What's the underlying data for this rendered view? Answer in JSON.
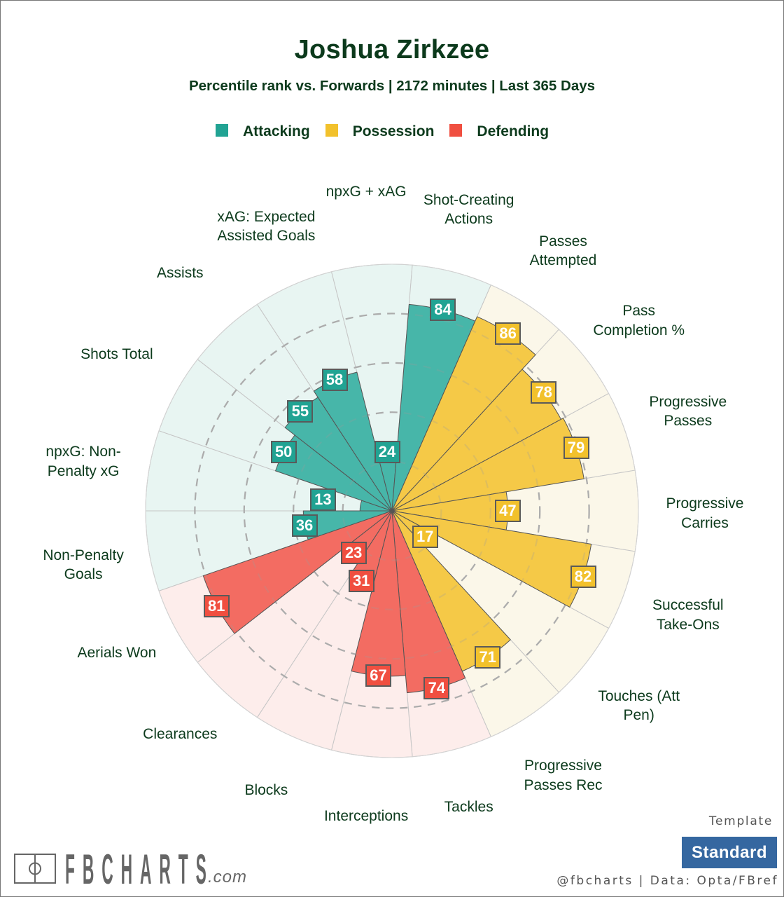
{
  "chart_data": {
    "type": "bar",
    "title": "Joshua Zirkzee",
    "subtitle": "Percentile rank vs. Forwards | 2172 minutes | Last 365 Days",
    "categories": [
      "Non-Penalty Goals",
      "npxG: Non-Penalty xG",
      "Shots Total",
      "Assists",
      "xAG: Expected Assisted Goals",
      "npxG + xAG",
      "Shot-Creating Actions",
      "Passes Attempted",
      "Pass Completion %",
      "Progressive Passes",
      "Progressive Carries",
      "Successful Take-Ons",
      "Touches (Att Pen)",
      "Progressive Passes Rec",
      "Tackles",
      "Interceptions",
      "Blocks",
      "Clearances",
      "Aerials Won"
    ],
    "group": [
      0,
      0,
      0,
      0,
      0,
      0,
      0,
      1,
      1,
      1,
      1,
      1,
      1,
      1,
      2,
      2,
      2,
      2,
      2
    ],
    "series": [
      {
        "values": [
          36,
          13,
          50,
          55,
          58,
          24,
          84,
          86,
          78,
          79,
          47,
          82,
          17,
          71,
          74,
          67,
          31,
          23,
          81
        ]
      }
    ],
    "rlim": [
      0,
      100
    ],
    "gridlines": [
      20,
      40,
      60,
      80
    ],
    "legend": {
      "position": "top",
      "items": [
        {
          "label": "Attacking",
          "color": "#21a393",
          "bar_color": "#47b6a9",
          "background": "#e8f5f2"
        },
        {
          "label": "Possession",
          "color": "#f2c12c",
          "bar_color": "#f5c947",
          "background": "#fbf7e9"
        },
        {
          "label": "Defending",
          "color": "#f04f40",
          "bar_color": "#f36c62",
          "background": "#fdedeb"
        }
      ]
    }
  },
  "footer": {
    "template_label": "Template",
    "template_value": "Standard",
    "credit": "@fbcharts | Data: Opta/FBref"
  },
  "logo": {
    "text": "FBCHARTS",
    "suffix": ".com"
  }
}
